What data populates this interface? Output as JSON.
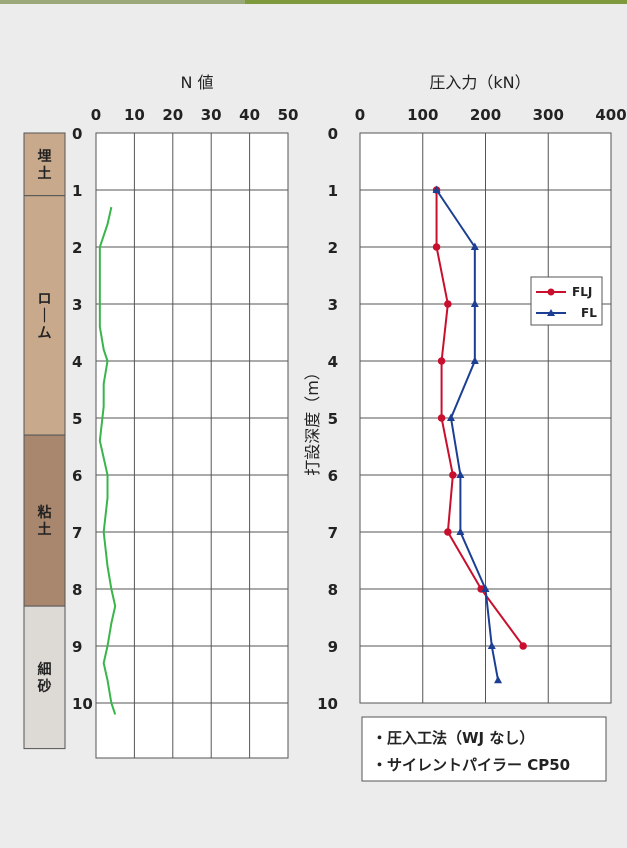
{
  "colors": {
    "background": "#ececec",
    "top_bar_left": "#9aa87a",
    "top_bar_right": "#7f9a3c",
    "grid": "#555555",
    "n_value_line": "#3ab54a",
    "flj": "#c8102e",
    "fl": "#1c3f94",
    "soil_fill": "#c8a98b",
    "clay_fill": "#a8876e",
    "sand_fill": "#dddad6"
  },
  "chart_data": [
    {
      "type": "line",
      "title": "N 値",
      "xlim": [
        0,
        50
      ],
      "x_ticks": [
        "0",
        "10",
        "20",
        "30",
        "40",
        "50"
      ],
      "ylim": [
        0,
        10
      ],
      "y_ticks": [
        "0",
        "1",
        "2",
        "3",
        "4",
        "5",
        "6",
        "7",
        "8",
        "9",
        "10"
      ],
      "soil_layers": [
        {
          "label": "埋土",
          "from": 0,
          "to": 1.1
        },
        {
          "label": "ローム",
          "from": 1.1,
          "to": 5.3
        },
        {
          "label": "粘土",
          "from": 5.3,
          "to": 8.3
        },
        {
          "label": "細砂",
          "from": 8.3,
          "to": 10.8
        }
      ],
      "series": [
        {
          "depth": [
            1.3,
            1.6,
            2.0,
            2.2,
            2.6,
            3.0,
            3.4,
            3.8,
            4.0,
            4.4,
            4.8,
            5.4,
            6.0,
            6.4,
            7.0,
            7.6,
            8.0,
            8.3,
            8.6,
            9.0,
            9.3,
            9.6,
            10.0,
            10.2
          ],
          "n": [
            4,
            3,
            1,
            1,
            1,
            1,
            1,
            2,
            3,
            2,
            2,
            1,
            3,
            3,
            2,
            3,
            4,
            5,
            4,
            3,
            2,
            3,
            4,
            5
          ]
        }
      ]
    },
    {
      "type": "line",
      "title": "圧入力（kN）",
      "xlim": [
        0,
        400
      ],
      "x_ticks": [
        "0",
        "100",
        "200",
        "300",
        "400"
      ],
      "ylim": [
        0,
        10
      ],
      "y_ticks": [
        "0",
        "1",
        "2",
        "3",
        "4",
        "5",
        "6",
        "7",
        "8",
        "9",
        "10"
      ],
      "ylabel": "打設深度（m）",
      "series": [
        {
          "name": "FLJ",
          "depth": [
            1,
            2,
            3,
            4,
            5,
            6,
            7,
            8,
            9
          ],
          "force": [
            122,
            122,
            140,
            130,
            130,
            148,
            140,
            193,
            260
          ]
        },
        {
          "name": "FL",
          "depth": [
            1,
            2,
            3,
            4,
            5,
            6,
            7,
            8,
            9,
            9.6
          ],
          "force": [
            122,
            183,
            183,
            183,
            145,
            160,
            160,
            200,
            210,
            220
          ]
        }
      ],
      "legend": "right",
      "notes": [
        "・圧入工法（WJ なし）",
        "・サイレントパイラー CP50"
      ]
    }
  ]
}
